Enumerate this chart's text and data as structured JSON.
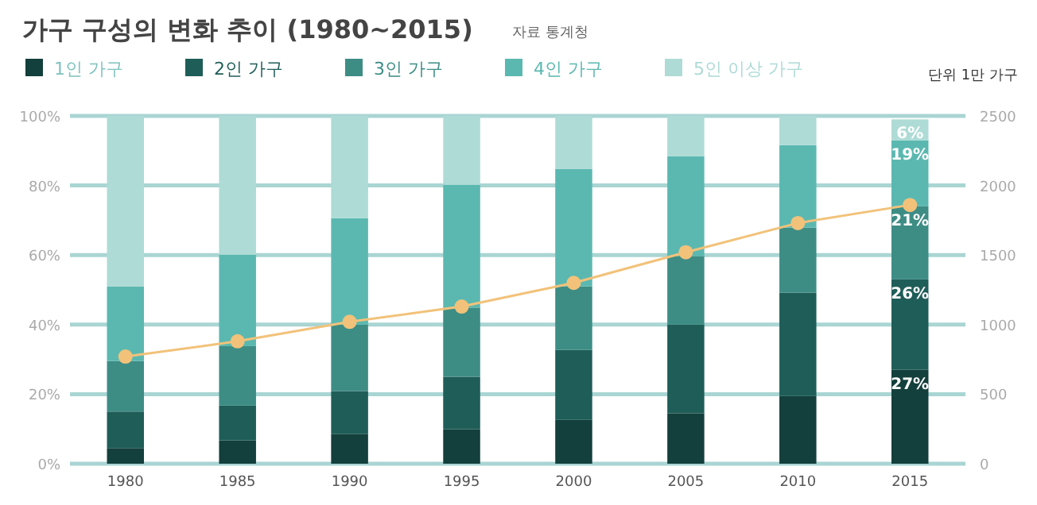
{
  "chart_data": {
    "type": "bar",
    "title": "가구 구성의 변화 추이 (1980~2015)",
    "subtitle": "자료 통계청",
    "y2label": "단위 1만 가구",
    "stacked": true,
    "grid": "y",
    "legend": "top left",
    "categories": [
      "1980",
      "1985",
      "1990",
      "1995",
      "2000",
      "2005",
      "2010",
      "2015"
    ],
    "ylim": [
      0,
      100
    ],
    "yticks": [
      {
        "value": 0,
        "label": "0%"
      },
      {
        "value": 20,
        "label": "20%"
      },
      {
        "value": 40,
        "label": "40%"
      },
      {
        "value": 60,
        "label": "60%"
      },
      {
        "value": 80,
        "label": "80%"
      },
      {
        "value": 100,
        "label": "100%"
      }
    ],
    "y2lim": [
      0,
      2500
    ],
    "y2ticks": [
      0,
      500,
      1000,
      1500,
      2000,
      2500
    ],
    "series": [
      {
        "name": "1인 가구",
        "color": "#133f3c",
        "values": [
          4.5,
          6.7,
          8.5,
          9.9,
          12.6,
          14.5,
          19.5,
          27
        ],
        "value_labels": [
          null,
          null,
          null,
          null,
          null,
          null,
          null,
          "27%"
        ]
      },
      {
        "name": "2인 가구",
        "color": "#1f5d58",
        "values": [
          10.5,
          10,
          12.4,
          15.1,
          20.1,
          25.5,
          29.7,
          26
        ],
        "value_labels": [
          null,
          null,
          null,
          null,
          null,
          null,
          null,
          "26%"
        ]
      },
      {
        "name": "3인 가구",
        "color": "#3d8d85",
        "values": [
          14.5,
          17.1,
          19.1,
          19.9,
          18.3,
          19.7,
          18.7,
          21
        ],
        "value_labels": [
          null,
          null,
          null,
          null,
          null,
          null,
          null,
          "21%"
        ]
      },
      {
        "name": "4인 가구",
        "color": "#5bb8b0",
        "values": [
          21.5,
          26.3,
          30.6,
          35.3,
          33.8,
          28.7,
          23.7,
          19
        ],
        "value_labels": [
          null,
          null,
          null,
          null,
          null,
          null,
          null,
          "19%"
        ]
      },
      {
        "name": "5인 이상 가구",
        "color": "#aedbd6",
        "values": [
          49,
          39.9,
          29.4,
          19.8,
          15.2,
          11.6,
          8.4,
          6
        ],
        "value_labels": [
          null,
          null,
          null,
          null,
          null,
          null,
          null,
          "6%"
        ]
      },
      {
        "type": "line",
        "axis": "y2",
        "color": "#f2c27a",
        "marker": "circle",
        "values": [
          770,
          880,
          1020,
          1130,
          1300,
          1520,
          1730,
          1860
        ]
      }
    ]
  }
}
